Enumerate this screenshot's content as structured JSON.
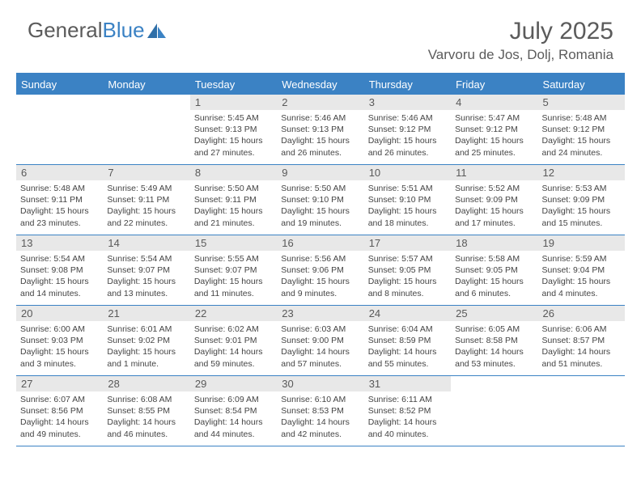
{
  "logo": {
    "text1": "General",
    "text2": "Blue"
  },
  "title": "July 2025",
  "location": "Varvoru de Jos, Dolj, Romania",
  "colors": {
    "accent": "#3b82c4",
    "header_bg": "#3b82c4",
    "header_text": "#ffffff",
    "daynum_bg": "#e8e8e8",
    "text": "#444444",
    "title_text": "#5b5b5b"
  },
  "daysOfWeek": [
    "Sunday",
    "Monday",
    "Tuesday",
    "Wednesday",
    "Thursday",
    "Friday",
    "Saturday"
  ],
  "weeks": [
    [
      null,
      null,
      {
        "n": "1",
        "sr": "5:45 AM",
        "ss": "9:13 PM",
        "dl": "15 hours and 27 minutes."
      },
      {
        "n": "2",
        "sr": "5:46 AM",
        "ss": "9:13 PM",
        "dl": "15 hours and 26 minutes."
      },
      {
        "n": "3",
        "sr": "5:46 AM",
        "ss": "9:12 PM",
        "dl": "15 hours and 26 minutes."
      },
      {
        "n": "4",
        "sr": "5:47 AM",
        "ss": "9:12 PM",
        "dl": "15 hours and 25 minutes."
      },
      {
        "n": "5",
        "sr": "5:48 AM",
        "ss": "9:12 PM",
        "dl": "15 hours and 24 minutes."
      }
    ],
    [
      {
        "n": "6",
        "sr": "5:48 AM",
        "ss": "9:11 PM",
        "dl": "15 hours and 23 minutes."
      },
      {
        "n": "7",
        "sr": "5:49 AM",
        "ss": "9:11 PM",
        "dl": "15 hours and 22 minutes."
      },
      {
        "n": "8",
        "sr": "5:50 AM",
        "ss": "9:11 PM",
        "dl": "15 hours and 21 minutes."
      },
      {
        "n": "9",
        "sr": "5:50 AM",
        "ss": "9:10 PM",
        "dl": "15 hours and 19 minutes."
      },
      {
        "n": "10",
        "sr": "5:51 AM",
        "ss": "9:10 PM",
        "dl": "15 hours and 18 minutes."
      },
      {
        "n": "11",
        "sr": "5:52 AM",
        "ss": "9:09 PM",
        "dl": "15 hours and 17 minutes."
      },
      {
        "n": "12",
        "sr": "5:53 AM",
        "ss": "9:09 PM",
        "dl": "15 hours and 15 minutes."
      }
    ],
    [
      {
        "n": "13",
        "sr": "5:54 AM",
        "ss": "9:08 PM",
        "dl": "15 hours and 14 minutes."
      },
      {
        "n": "14",
        "sr": "5:54 AM",
        "ss": "9:07 PM",
        "dl": "15 hours and 13 minutes."
      },
      {
        "n": "15",
        "sr": "5:55 AM",
        "ss": "9:07 PM",
        "dl": "15 hours and 11 minutes."
      },
      {
        "n": "16",
        "sr": "5:56 AM",
        "ss": "9:06 PM",
        "dl": "15 hours and 9 minutes."
      },
      {
        "n": "17",
        "sr": "5:57 AM",
        "ss": "9:05 PM",
        "dl": "15 hours and 8 minutes."
      },
      {
        "n": "18",
        "sr": "5:58 AM",
        "ss": "9:05 PM",
        "dl": "15 hours and 6 minutes."
      },
      {
        "n": "19",
        "sr": "5:59 AM",
        "ss": "9:04 PM",
        "dl": "15 hours and 4 minutes."
      }
    ],
    [
      {
        "n": "20",
        "sr": "6:00 AM",
        "ss": "9:03 PM",
        "dl": "15 hours and 3 minutes."
      },
      {
        "n": "21",
        "sr": "6:01 AM",
        "ss": "9:02 PM",
        "dl": "15 hours and 1 minute."
      },
      {
        "n": "22",
        "sr": "6:02 AM",
        "ss": "9:01 PM",
        "dl": "14 hours and 59 minutes."
      },
      {
        "n": "23",
        "sr": "6:03 AM",
        "ss": "9:00 PM",
        "dl": "14 hours and 57 minutes."
      },
      {
        "n": "24",
        "sr": "6:04 AM",
        "ss": "8:59 PM",
        "dl": "14 hours and 55 minutes."
      },
      {
        "n": "25",
        "sr": "6:05 AM",
        "ss": "8:58 PM",
        "dl": "14 hours and 53 minutes."
      },
      {
        "n": "26",
        "sr": "6:06 AM",
        "ss": "8:57 PM",
        "dl": "14 hours and 51 minutes."
      }
    ],
    [
      {
        "n": "27",
        "sr": "6:07 AM",
        "ss": "8:56 PM",
        "dl": "14 hours and 49 minutes."
      },
      {
        "n": "28",
        "sr": "6:08 AM",
        "ss": "8:55 PM",
        "dl": "14 hours and 46 minutes."
      },
      {
        "n": "29",
        "sr": "6:09 AM",
        "ss": "8:54 PM",
        "dl": "14 hours and 44 minutes."
      },
      {
        "n": "30",
        "sr": "6:10 AM",
        "ss": "8:53 PM",
        "dl": "14 hours and 42 minutes."
      },
      {
        "n": "31",
        "sr": "6:11 AM",
        "ss": "8:52 PM",
        "dl": "14 hours and 40 minutes."
      },
      null,
      null
    ]
  ],
  "labels": {
    "sunrise": "Sunrise:",
    "sunset": "Sunset:",
    "daylight": "Daylight:"
  }
}
